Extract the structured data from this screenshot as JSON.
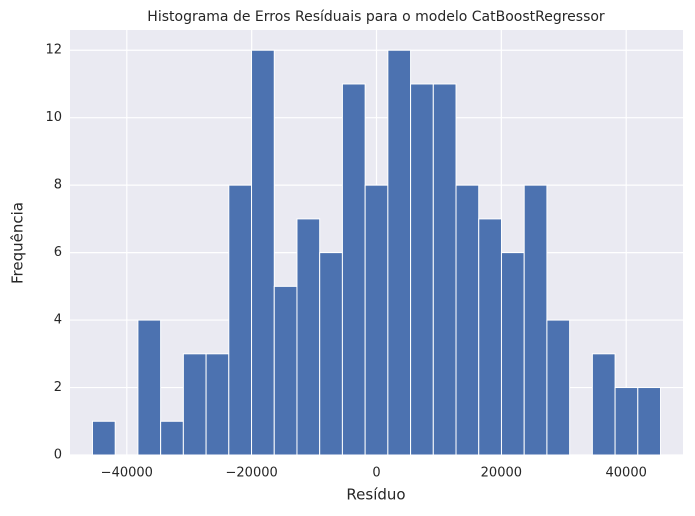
{
  "chart_data": {
    "type": "histogram",
    "title": "Histograma de Erros Resíduais para o modelo CatBoostRegressor",
    "xlabel": "Resíduo",
    "ylabel": "Frequência",
    "bins": [
      -45500,
      -41860,
      -38220,
      -34580,
      -30940,
      -27300,
      -23660,
      -20020,
      -16380,
      -12740,
      -9100,
      -5460,
      -1820,
      1820,
      5460,
      9100,
      12740,
      16380,
      20020,
      23660,
      27300,
      30940,
      34580,
      38220,
      41860,
      45500
    ],
    "values": [
      1,
      0,
      4,
      1,
      3,
      3,
      8,
      12,
      5,
      7,
      6,
      11,
      8,
      12,
      11,
      11,
      8,
      7,
      6,
      8,
      4,
      0,
      3,
      2,
      2
    ],
    "color": "#4c72b0",
    "xlim": [
      -49100,
      49100
    ],
    "xticks": [
      {
        "value": -40000,
        "label": "−40000"
      },
      {
        "value": -20000,
        "label": "−20000"
      },
      0,
      20000,
      40000
    ],
    "ylim": [
      0,
      12.6
    ],
    "yticks": [
      0,
      2,
      4,
      6,
      8,
      10,
      12
    ],
    "grid": true
  }
}
